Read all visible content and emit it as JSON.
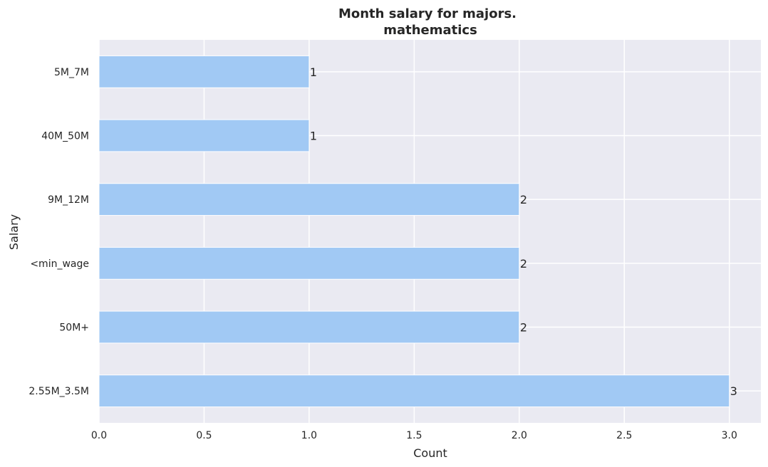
{
  "chart_data": {
    "type": "bar",
    "orientation": "horizontal",
    "title_line1": "Month salary for majors.",
    "title_line2": "mathematics",
    "xlabel": "Count",
    "ylabel": "Salary",
    "categories": [
      "5M_7M",
      "40M_50M",
      "9M_12M",
      "<min_wage",
      "50M+",
      "2.55M_3.5M"
    ],
    "values": [
      1,
      1,
      2,
      2,
      2,
      3
    ],
    "data_labels": [
      "1",
      "1",
      "2",
      "2",
      "2",
      "3"
    ],
    "xlim": [
      0,
      3.15
    ],
    "xticks": [
      0.0,
      0.5,
      1.0,
      1.5,
      2.0,
      2.5,
      3.0
    ],
    "xtick_labels": [
      "0.0",
      "0.5",
      "1.0",
      "1.5",
      "2.0",
      "2.5",
      "3.0"
    ],
    "grid": true,
    "colors": {
      "bar": "#a1c9f4",
      "background": "#eaeaf2",
      "grid": "#ffffff",
      "text": "#262626"
    }
  }
}
